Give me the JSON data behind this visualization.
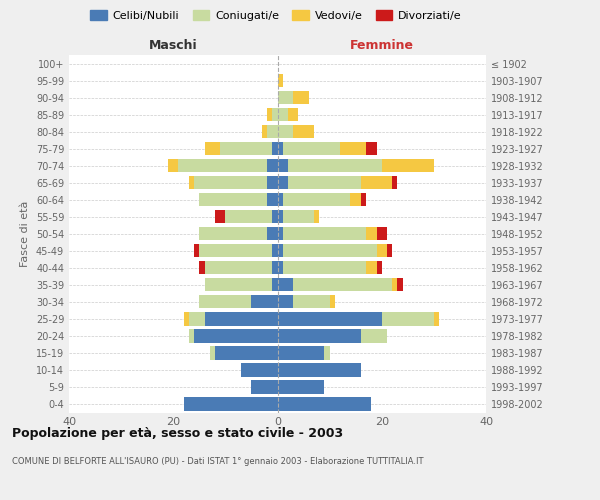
{
  "age_groups": [
    "0-4",
    "5-9",
    "10-14",
    "15-19",
    "20-24",
    "25-29",
    "30-34",
    "35-39",
    "40-44",
    "45-49",
    "50-54",
    "55-59",
    "60-64",
    "65-69",
    "70-74",
    "75-79",
    "80-84",
    "85-89",
    "90-94",
    "95-99",
    "100+"
  ],
  "birth_years": [
    "1998-2002",
    "1993-1997",
    "1988-1992",
    "1983-1987",
    "1978-1982",
    "1973-1977",
    "1968-1972",
    "1963-1967",
    "1958-1962",
    "1953-1957",
    "1948-1952",
    "1943-1947",
    "1938-1942",
    "1933-1937",
    "1928-1932",
    "1923-1927",
    "1918-1922",
    "1913-1917",
    "1908-1912",
    "1903-1907",
    "≤ 1902"
  ],
  "males_celibi": [
    18,
    5,
    7,
    12,
    16,
    14,
    5,
    1,
    1,
    1,
    2,
    1,
    2,
    2,
    2,
    1,
    0,
    0,
    0,
    0,
    0
  ],
  "males_coniugati": [
    0,
    0,
    0,
    1,
    1,
    3,
    10,
    13,
    13,
    14,
    13,
    9,
    13,
    14,
    17,
    10,
    2,
    1,
    0,
    0,
    0
  ],
  "males_vedovi": [
    0,
    0,
    0,
    0,
    0,
    1,
    0,
    0,
    0,
    0,
    0,
    0,
    0,
    1,
    2,
    3,
    1,
    1,
    0,
    0,
    0
  ],
  "males_divorziati": [
    0,
    0,
    0,
    0,
    0,
    0,
    0,
    0,
    1,
    1,
    0,
    2,
    0,
    0,
    0,
    0,
    0,
    0,
    0,
    0,
    0
  ],
  "females_nubili": [
    18,
    9,
    16,
    9,
    16,
    20,
    3,
    3,
    1,
    1,
    1,
    1,
    1,
    2,
    2,
    1,
    0,
    0,
    0,
    0,
    0
  ],
  "females_coniugate": [
    0,
    0,
    0,
    1,
    5,
    10,
    7,
    19,
    16,
    18,
    16,
    6,
    13,
    14,
    18,
    11,
    3,
    2,
    3,
    0,
    0
  ],
  "females_vedove": [
    0,
    0,
    0,
    0,
    0,
    1,
    1,
    1,
    2,
    2,
    2,
    1,
    2,
    6,
    10,
    5,
    4,
    2,
    3,
    1,
    0
  ],
  "females_divorziate": [
    0,
    0,
    0,
    0,
    0,
    0,
    0,
    1,
    1,
    1,
    2,
    0,
    1,
    1,
    0,
    2,
    0,
    0,
    0,
    0,
    0
  ],
  "color_celibi": "#4a7bb5",
  "color_coniugati": "#c8dba0",
  "color_vedovi": "#f5c842",
  "color_divorziati": "#cc1a1a",
  "legend_labels": [
    "Celibi/Nubili",
    "Coniugati/e",
    "Vedovi/e",
    "Divorziati/e"
  ],
  "title1": "Popolazione per età, sesso e stato civile - 2003",
  "title2": "COMUNE DI BELFORTE ALL'ISAURO (PU) - Dati ISTAT 1° gennaio 2003 - Elaborazione TUTTITALIA.IT",
  "label_maschi": "Maschi",
  "label_femmine": "Femmine",
  "ylabel_left": "Fasce di età",
  "xlim": 40,
  "bg_color": "#efefef",
  "plot_bg": "#ffffff"
}
